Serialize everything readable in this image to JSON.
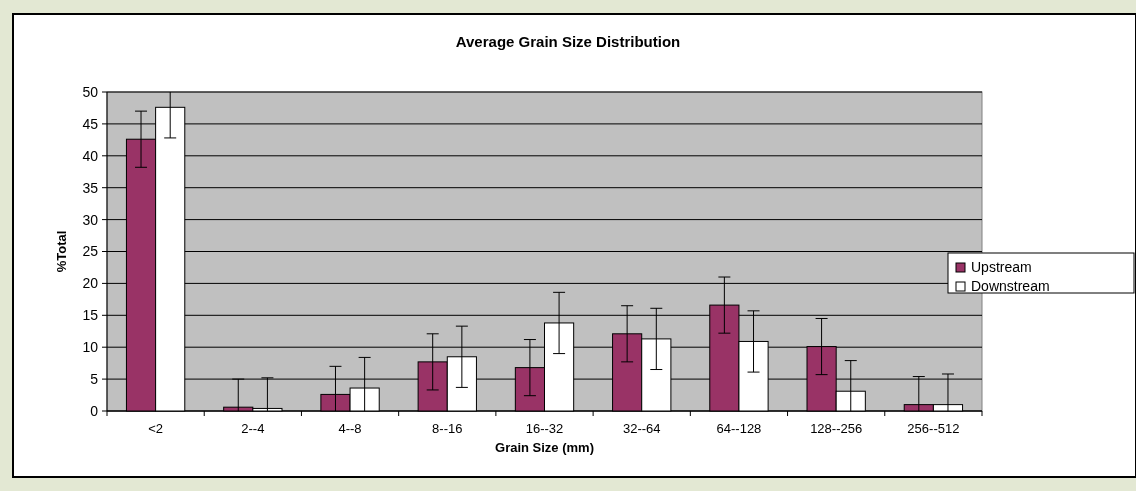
{
  "chart_data": {
    "type": "bar",
    "title": "Average Grain Size Distribution",
    "xlabel": "Grain Size (mm)",
    "ylabel": "%Total",
    "categories": [
      "<2",
      "2--4",
      "4--8",
      "8--16",
      "16--32",
      "32--64",
      "64--128",
      "128--256",
      "256--512"
    ],
    "series": [
      {
        "name": "Upstream",
        "color": "#993366",
        "values": [
          42.6,
          0.6,
          2.6,
          7.7,
          6.8,
          12.1,
          16.6,
          10.1,
          1.0
        ],
        "errors": [
          4.4,
          [
            0,
            5.0
          ],
          [
            0,
            7.0
          ],
          4.4,
          4.4,
          4.4,
          4.4,
          4.4,
          [
            0,
            5.4
          ]
        ]
      },
      {
        "name": "Downstream",
        "color": "#ffffff",
        "values": [
          47.6,
          0.4,
          3.6,
          8.5,
          13.8,
          11.3,
          10.9,
          3.1,
          1.0
        ],
        "errors": [
          [
            42.8,
            50
          ],
          [
            0,
            5.2
          ],
          [
            0,
            8.4
          ],
          4.8,
          4.8,
          4.8,
          4.8,
          [
            0,
            7.9
          ],
          [
            0,
            5.8
          ]
        ]
      }
    ],
    "ylim": [
      0,
      50
    ],
    "yticks": [
      0,
      5,
      10,
      15,
      20,
      25,
      30,
      35,
      40,
      45,
      50
    ],
    "grid": "y",
    "legend": "right"
  }
}
